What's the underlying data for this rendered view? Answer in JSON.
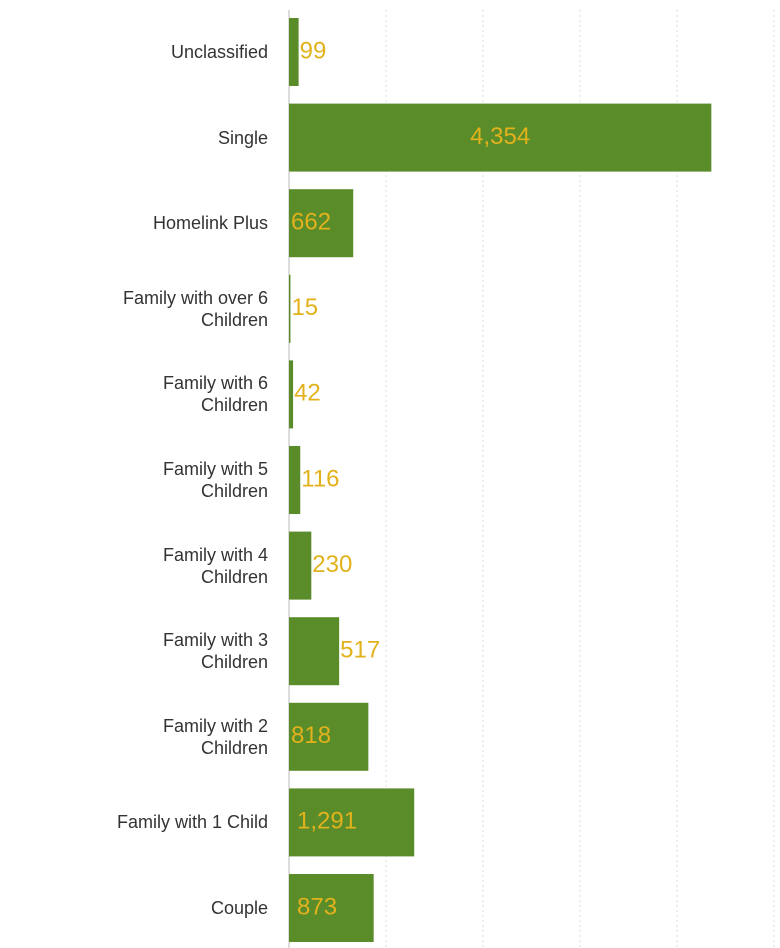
{
  "chart_data": {
    "type": "barh",
    "categories": [
      "Unclassified",
      "Single",
      "Homelink Plus",
      "Family with over 6\nChildren",
      "Family with 6\nChildren",
      "Family with 5\nChildren",
      "Family with 4\nChildren",
      "Family with 3\nChildren",
      "Family with 2\nChildren",
      "Family with 1 Child",
      "Couple"
    ],
    "values": [
      99,
      4354,
      662,
      15,
      42,
      116,
      230,
      517,
      818,
      1291,
      873
    ],
    "value_labels": [
      "99",
      "4,354",
      "662",
      "15",
      "42",
      "116",
      "230",
      "517",
      "818",
      "1,291",
      "873"
    ],
    "color": "#5b8c2a",
    "label_color": "#e2b21c",
    "xlim": [
      0,
      5000
    ],
    "xticks": [
      0,
      1000,
      2000,
      3000,
      4000,
      5000
    ],
    "grid": true
  }
}
